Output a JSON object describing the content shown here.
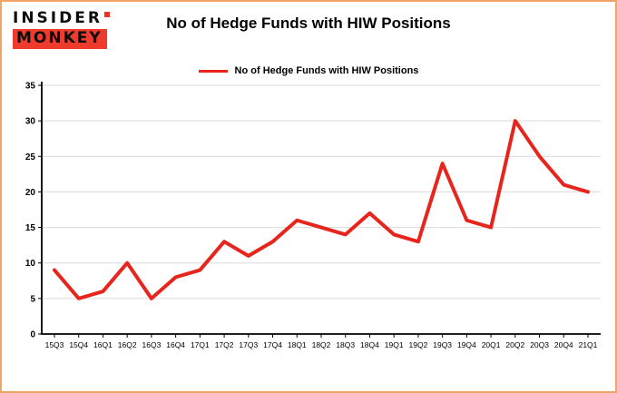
{
  "logo": {
    "line1": "INSIDER",
    "line2": "MONKEY"
  },
  "chart_data": {
    "type": "line",
    "title": "No of Hedge Funds with HIW Positions",
    "legend": "No of Hedge Funds with HIW Positions",
    "categories": [
      "15Q3",
      "15Q4",
      "16Q1",
      "16Q2",
      "16Q3",
      "16Q4",
      "17Q1",
      "17Q2",
      "17Q3",
      "17Q4",
      "18Q1",
      "18Q2",
      "18Q3",
      "18Q4",
      "19Q1",
      "19Q2",
      "19Q3",
      "19Q4",
      "20Q1",
      "20Q2",
      "20Q3",
      "20Q4",
      "21Q1"
    ],
    "values": [
      9,
      5,
      6,
      10,
      5,
      8,
      9,
      13,
      11,
      13,
      16,
      15,
      14,
      17,
      14,
      13,
      24,
      16,
      15,
      30,
      25,
      21,
      20
    ],
    "ylim": [
      0,
      35
    ],
    "yticks": [
      0,
      5,
      10,
      15,
      20,
      25,
      30,
      35
    ],
    "line_color": "#e8251d",
    "grid": true,
    "legend_position": "top",
    "colors": {
      "line": "#e8251d",
      "grid": "#d9d9d9",
      "axis": "#000000",
      "border": "#f0a465",
      "logo_red": "#ee3b2d"
    }
  }
}
